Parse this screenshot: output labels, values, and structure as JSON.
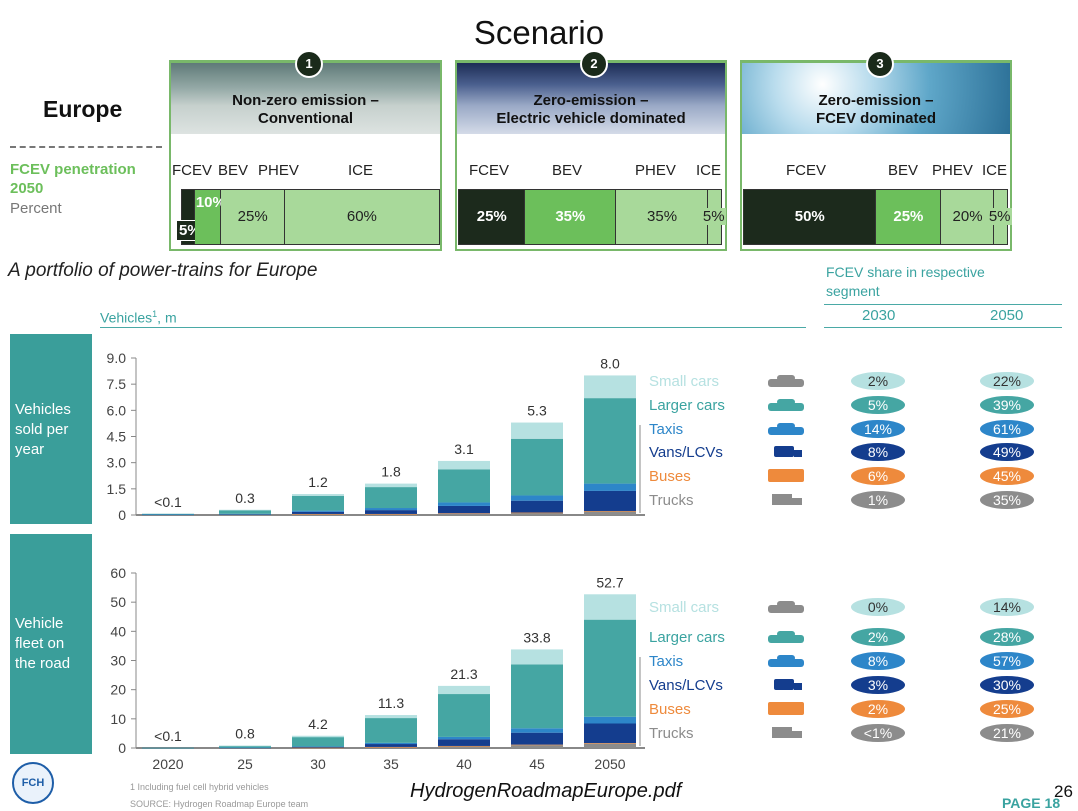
{
  "header": {
    "title": "Scenario",
    "region": "Europe"
  },
  "penetration": {
    "line1": "FCEV penetration",
    "line2": "2050",
    "line3": "Percent"
  },
  "scenarios": [
    {
      "number": "1",
      "title1": "Non-zero emission –",
      "title2": "Conventional",
      "labels": [
        "FCEV",
        "BEV",
        "PHEV",
        "ICE"
      ],
      "shares": [
        5,
        10,
        25,
        60
      ],
      "share_labels": [
        "5%",
        "10%",
        "25%",
        "60%"
      ]
    },
    {
      "number": "2",
      "title1": "Zero-emission –",
      "title2": "Electric vehicle dominated",
      "labels": [
        "FCEV",
        "BEV",
        "PHEV",
        "ICE"
      ],
      "shares": [
        25,
        35,
        35,
        5
      ],
      "share_labels": [
        "25%",
        "35%",
        "35%",
        "5%"
      ]
    },
    {
      "number": "3",
      "title1": "Zero-emission –",
      "title2": "FCEV dominated",
      "labels": [
        "FCEV",
        "BEV",
        "PHEV",
        "ICE"
      ],
      "shares": [
        50,
        25,
        20,
        5
      ],
      "share_labels": [
        "50%",
        "25%",
        "20%",
        "5%"
      ]
    }
  ],
  "caption": "A portfolio of power-trains for Europe",
  "right_table": {
    "title1": "FCEV share in respective",
    "title2": "segment",
    "col1": "2030",
    "col2": "2050"
  },
  "vehicles_label": "Vehicles",
  "vehicles_sup": "1",
  "vehicles_unit": ", m",
  "segments": [
    "Small cars",
    "Larger cars",
    "Taxis",
    "Vans/LCVs",
    "Buses",
    "Trucks"
  ],
  "colors": {
    "small": "#b6e1e1",
    "larger": "#45a6a3",
    "taxis": "#2d86c9",
    "vans": "#143d8e",
    "buses": "#ee8a3c",
    "trucks": "#8c8c8c",
    "panel_green": "#79b86a",
    "fcev": "#1c2a1c",
    "bev": "#6cbf5b",
    "phev": "#a8d99a",
    "teal": "#3aa3a0"
  },
  "icons": [
    "small-car-icon",
    "larger-car-icon",
    "taxi-icon",
    "van-icon",
    "bus-icon",
    "truck-icon"
  ],
  "chart_data": [
    {
      "type": "bar",
      "side_label": "Vehicles sold per year",
      "categories": [
        "2020",
        "25",
        "30",
        "35",
        "40",
        "45",
        "2050"
      ],
      "ylim": [
        0,
        9.0
      ],
      "yticks": [
        "0",
        "1.5",
        "3.0",
        "4.5",
        "6.0",
        "7.5",
        "9.0"
      ],
      "totals": [
        "<0.1",
        "0.3",
        "1.2",
        "1.8",
        "3.1",
        "5.3",
        "8.0"
      ],
      "series": [
        {
          "name": "Trucks",
          "values": [
            0.01,
            0.02,
            0.05,
            0.05,
            0.08,
            0.12,
            0.2
          ]
        },
        {
          "name": "Buses",
          "values": [
            0.0,
            0.0,
            0.01,
            0.01,
            0.02,
            0.02,
            0.03
          ]
        },
        {
          "name": "Vans/LCVs",
          "values": [
            0.02,
            0.03,
            0.12,
            0.22,
            0.42,
            0.68,
            1.15
          ]
        },
        {
          "name": "Taxis",
          "values": [
            0.01,
            0.02,
            0.07,
            0.12,
            0.2,
            0.3,
            0.42
          ]
        },
        {
          "name": "Larger cars",
          "values": [
            0.03,
            0.2,
            0.85,
            1.2,
            1.9,
            3.25,
            4.9
          ]
        },
        {
          "name": "Small cars",
          "values": [
            0.0,
            0.03,
            0.1,
            0.2,
            0.48,
            0.93,
            1.3
          ]
        }
      ],
      "share_2030": [
        "2%",
        "5%",
        "14%",
        "8%",
        "6%",
        "1%"
      ],
      "share_2050": [
        "22%",
        "39%",
        "61%",
        "49%",
        "45%",
        "35%"
      ]
    },
    {
      "type": "bar",
      "side_label": "Vehicle fleet on the road",
      "categories": [
        "2020",
        "25",
        "30",
        "35",
        "40",
        "45",
        "2050"
      ],
      "ylim": [
        0,
        60
      ],
      "yticks": [
        "0",
        "10",
        "20",
        "30",
        "40",
        "50",
        "60"
      ],
      "totals": [
        "<0.1",
        "0.8",
        "4.2",
        "11.3",
        "21.3",
        "33.8",
        "52.7"
      ],
      "series": [
        {
          "name": "Trucks",
          "values": [
            0.01,
            0.05,
            0.1,
            0.3,
            0.6,
            1.0,
            1.5
          ]
        },
        {
          "name": "Buses",
          "values": [
            0.0,
            0.01,
            0.03,
            0.06,
            0.1,
            0.15,
            0.2
          ]
        },
        {
          "name": "Vans/LCVs",
          "values": [
            0.02,
            0.06,
            0.3,
            1.0,
            2.3,
            4.1,
            6.7
          ]
        },
        {
          "name": "Taxis",
          "values": [
            0.01,
            0.02,
            0.1,
            0.4,
            0.8,
            1.5,
            2.3
          ]
        },
        {
          "name": "Larger cars",
          "values": [
            0.04,
            0.6,
            3.2,
            8.5,
            14.7,
            21.9,
            33.3
          ]
        },
        {
          "name": "Small cars",
          "values": [
            0.0,
            0.06,
            0.47,
            1.04,
            2.8,
            5.15,
            8.7
          ]
        }
      ],
      "share_2030": [
        "0%",
        "2%",
        "8%",
        "3%",
        "2%",
        "<1%"
      ],
      "share_2050": [
        "14%",
        "28%",
        "57%",
        "30%",
        "25%",
        "21%"
      ]
    }
  ],
  "footnote1": "1 Including fuel cell hybrid vehicles",
  "footnote2": "SOURCE: Hydrogen Roadmap Europe team",
  "pdf_name": "HydrogenRoadmapEurope.pdf",
  "page_label": "PAGE 18",
  "page_number": "26",
  "logo_text": "FCH"
}
